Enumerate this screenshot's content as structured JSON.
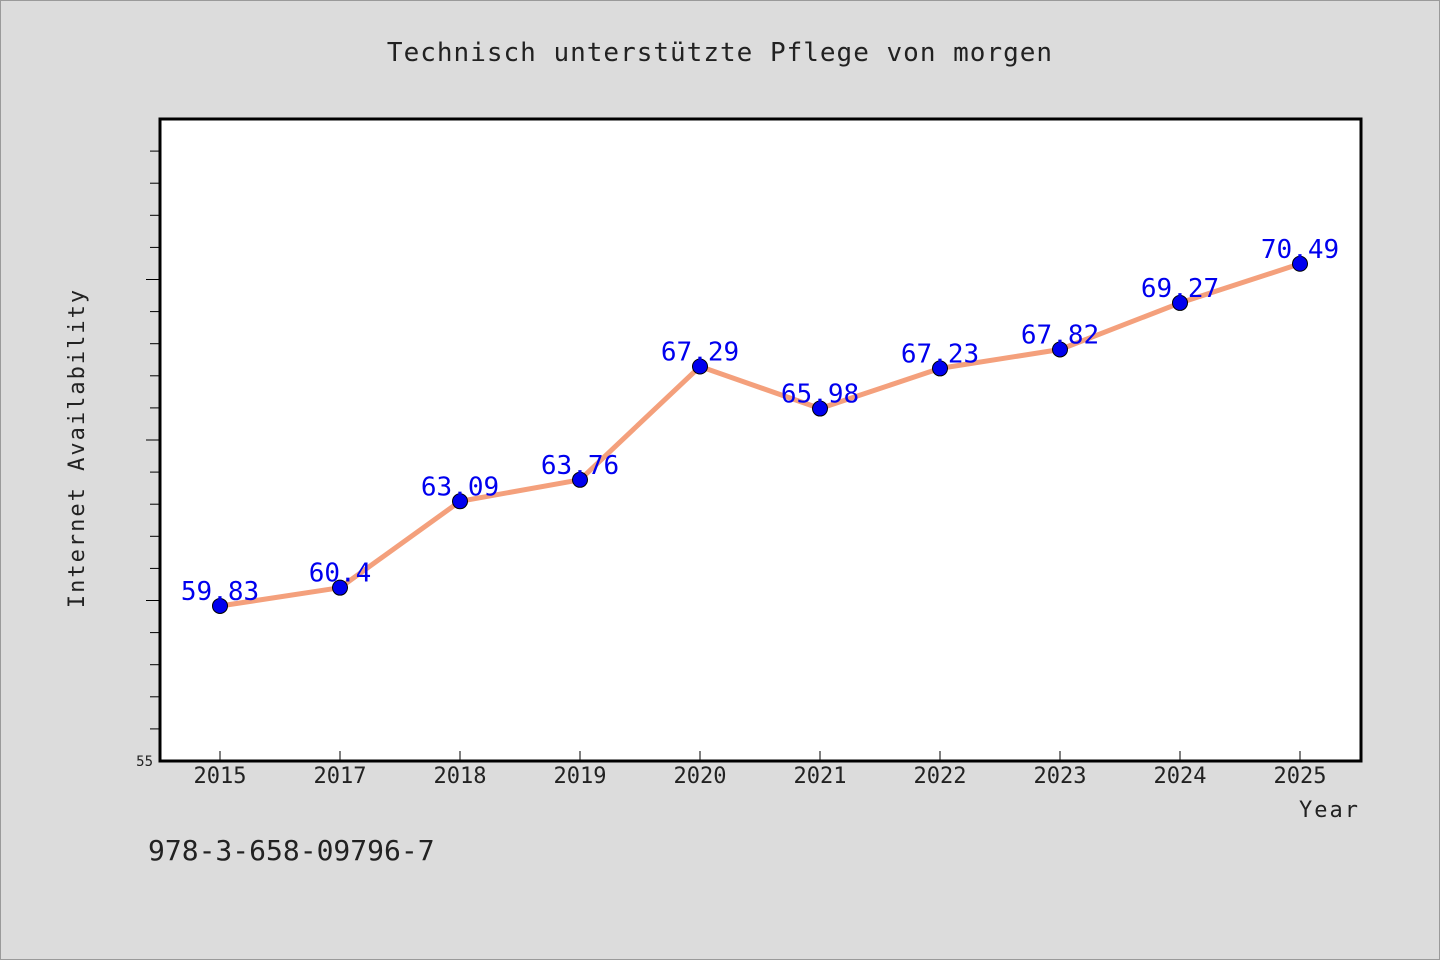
{
  "chart_data": {
    "type": "line",
    "title": "Technisch unterstützte Pflege von morgen",
    "xlabel": "Year",
    "ylabel": "Internet Availability",
    "categories": [
      "2015",
      "2017",
      "2018",
      "2019",
      "2020",
      "2021",
      "2022",
      "2023",
      "2024",
      "2025"
    ],
    "series": [
      {
        "values": [
          59.83,
          60.4,
          63.09,
          63.76,
          67.29,
          65.98,
          67.23,
          67.82,
          69.27,
          70.49
        ]
      }
    ],
    "data_labels": [
      "59.83",
      "60.4",
      "63.09",
      "63.76",
      "67.29",
      "65.98",
      "67.23",
      "67.82",
      "69.27",
      "70.49"
    ],
    "ylim": [
      55,
      75
    ],
    "y_tick_labels": [
      "55"
    ],
    "grid": false,
    "colors": {
      "line": "#f4a07c",
      "marker": "#0000ee",
      "label": "#0000ee",
      "background": "#dcdcdc",
      "plot_area": "#ffffff"
    }
  },
  "footer": {
    "isbn": "978-3-658-09796-7"
  }
}
